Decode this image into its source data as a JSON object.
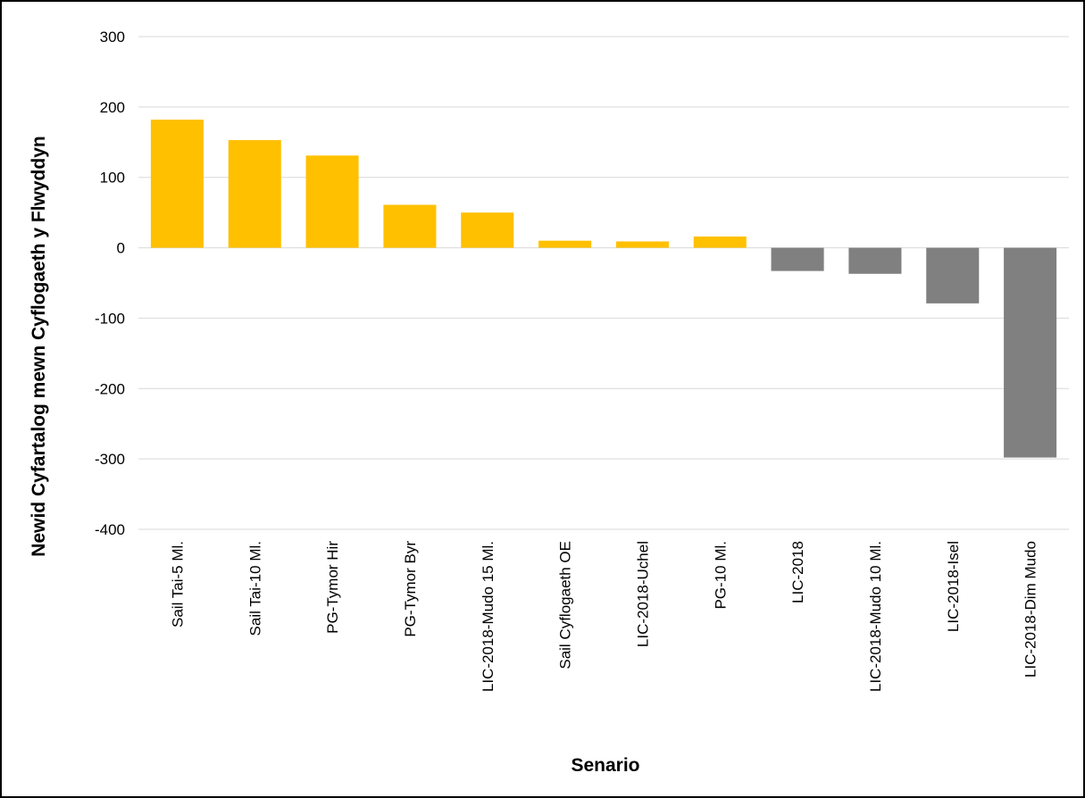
{
  "chart_data": {
    "type": "bar",
    "title": "",
    "xlabel": "Senario",
    "ylabel": "Newid Cyfartalog mewn Cyflogaeth y Flwyddyn",
    "ylim": [
      -400,
      300
    ],
    "yticks": [
      300,
      200,
      100,
      0,
      -100,
      -200,
      -300,
      -400
    ],
    "grid": true,
    "legend": "none",
    "categories": [
      "Sail Tai-5 Ml.",
      "Sail Tai-10 Ml.",
      "PG-Tymor Hir",
      "PG-Tymor Byr",
      "LIC-2018-Mudo 15 Ml.",
      "Sail Cyflogaeth OE",
      "LIC-2018-Uchel",
      "PG-10 Ml.",
      "LIC-2018",
      "LIC-2018-Mudo 10 Ml.",
      "LIC-2018-Isel",
      "LIC-2018-Dim Mudo"
    ],
    "values": [
      182,
      153,
      131,
      61,
      50,
      10,
      9,
      16,
      -33,
      -37,
      -79,
      -298
    ],
    "colors": {
      "positive": "#FFC000",
      "negative": "#808080",
      "gridline": "#D9D9D9"
    }
  }
}
